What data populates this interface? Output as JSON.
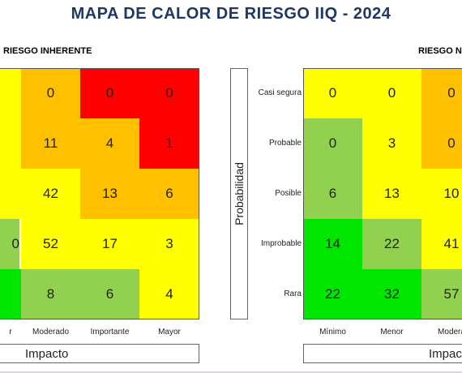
{
  "title": "MAPA DE CALOR DE RIESGO IIQ - 2024",
  "colors": {
    "red": "#ff0000",
    "orange": "#ffc000",
    "yellow": "#ffff00",
    "light_green": "#92d050",
    "green": "#00e600"
  },
  "chart_data": [
    {
      "type": "heatmap",
      "title": "RIESGO INHERENTE",
      "rows": [
        "",
        "",
        "",
        "",
        ""
      ],
      "columns": [
        "r",
        "Moderado",
        "Importante",
        "Mayor"
      ],
      "values": [
        [
          null,
          0,
          0,
          0
        ],
        [
          null,
          11,
          4,
          1
        ],
        [
          null,
          42,
          13,
          6
        ],
        [
          null,
          52,
          17,
          3
        ],
        [
          null,
          8,
          6,
          4
        ]
      ],
      "cell_colors": [
        [
          "yellow",
          "orange",
          "red",
          "red"
        ],
        [
          "yellow",
          "orange",
          "orange",
          "red"
        ],
        [
          "yellow",
          "yellow",
          "orange",
          "orange"
        ],
        [
          "light_green",
          "yellow",
          "yellow",
          "yellow"
        ],
        [
          "green",
          "light_green",
          "light_green",
          "yellow"
        ]
      ],
      "first_column_value_partial": [
        "",
        "",
        "",
        "0",
        ""
      ],
      "xlabel": "Impacto",
      "ylabel": ""
    },
    {
      "type": "heatmap",
      "title": "RIESGO N",
      "rows": [
        "Casi segura",
        "Probable",
        "Posible",
        "Improbable",
        "Rara"
      ],
      "columns": [
        "Mínimo",
        "Menor",
        "Modera"
      ],
      "values": [
        [
          0,
          0,
          0
        ],
        [
          0,
          3,
          0
        ],
        [
          6,
          13,
          10
        ],
        [
          14,
          22,
          41
        ],
        [
          22,
          32,
          57
        ]
      ],
      "cell_colors": [
        [
          "yellow",
          "yellow",
          "orange"
        ],
        [
          "light_green",
          "yellow",
          "orange"
        ],
        [
          "light_green",
          "yellow",
          "yellow"
        ],
        [
          "green",
          "light_green",
          "yellow"
        ],
        [
          "green",
          "green",
          "light_green"
        ]
      ],
      "xlabel": "Impac",
      "ylabel": "Probabilidad"
    }
  ]
}
